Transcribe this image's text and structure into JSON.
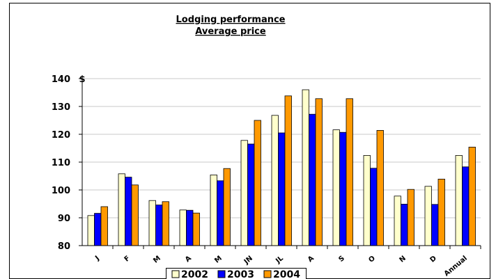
{
  "chart_data": {
    "type": "bar",
    "title": "Lodging performance",
    "subtitle": "Average price",
    "ylabel": "$",
    "ylim": [
      80,
      140
    ],
    "yticks": [
      80,
      90,
      100,
      110,
      120,
      130,
      140
    ],
    "grid": true,
    "legend_position": "bottom",
    "categories": [
      "J",
      "F",
      "M",
      "A",
      "M",
      "JN",
      "JL",
      "A",
      "S",
      "O",
      "N",
      "D",
      "Annual"
    ],
    "series": [
      {
        "name": "2002",
        "color": "#ffffcc",
        "values": [
          90.8,
          105.8,
          96.2,
          92.8,
          105.4,
          117.8,
          126.8,
          136.0,
          121.6,
          112.4,
          97.8,
          101.3,
          112.4
        ]
      },
      {
        "name": "2003",
        "color": "#0000ff",
        "values": [
          91.6,
          104.6,
          94.6,
          92.7,
          103.3,
          116.5,
          120.5,
          127.2,
          120.7,
          107.8,
          94.9,
          94.8,
          108.3
        ]
      },
      {
        "name": "2004",
        "color": "#ff9900",
        "values": [
          94.0,
          101.8,
          95.8,
          91.7,
          107.7,
          125.0,
          133.8,
          132.8,
          132.8,
          121.4,
          100.2,
          103.9,
          115.4
        ]
      }
    ]
  }
}
